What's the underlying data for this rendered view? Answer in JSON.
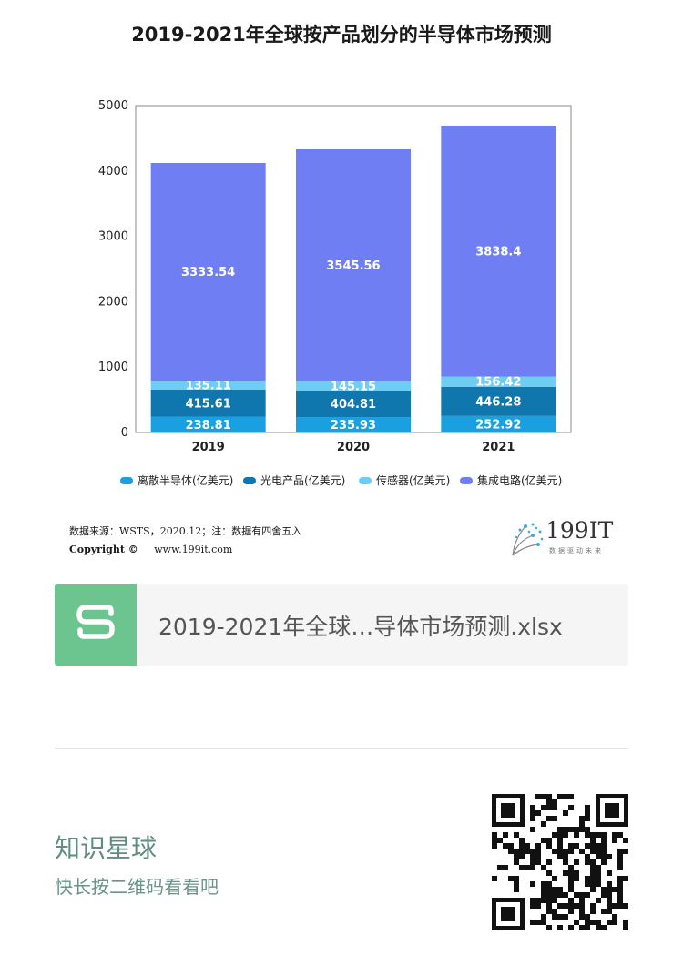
{
  "title": "2019-2021年全球按产品划分的半导体市场预测",
  "chart_data": {
    "type": "bar",
    "stacked": true,
    "title": "2019-2021年全球按产品划分的半导体市场预测",
    "categories": [
      "2019",
      "2020",
      "2021"
    ],
    "series": [
      {
        "name": "离散半导体(亿美元)",
        "values": [
          238.81,
          235.93,
          252.92
        ],
        "color": "#1a9fe0"
      },
      {
        "name": "光电产品(亿美元)",
        "values": [
          415.61,
          404.81,
          446.28
        ],
        "color": "#0f76ae"
      },
      {
        "name": "传感器(亿美元)",
        "values": [
          135.11,
          145.15,
          156.42
        ],
        "color": "#6ecdf2"
      },
      {
        "name": "集成电路(亿美元)",
        "values": [
          3333.54,
          3545.56,
          3838.4
        ],
        "color": "#6f7ef2"
      }
    ],
    "data_labels": [
      [
        "238.81",
        "235.93",
        "252.92"
      ],
      [
        "415.61",
        "404.81",
        "446.28"
      ],
      [
        "135.11",
        "145.15",
        "156.42"
      ],
      [
        "3333.54",
        "3545.56",
        "3838.4"
      ]
    ],
    "yticks": [
      "0",
      "1000",
      "2000",
      "3000",
      "4000",
      "5000"
    ],
    "ylim": [
      0,
      5000
    ],
    "legend_position": "bottom",
    "grid": false
  },
  "source": {
    "text": "数据来源：WSTS，2020.12；注：数据有四舍五入",
    "copyright_label": "Copyright ©",
    "website": "www.199it.com"
  },
  "logo": {
    "text": "199IT",
    "subtitle": "数据驱动未来"
  },
  "file": {
    "icon": "spreadsheet-s-icon",
    "name": "2019-2021年全球…导体市场预测.xlsx"
  },
  "planet": {
    "title": "知识星球",
    "subtitle": "快长按二维码看看吧",
    "qr_icon": "qr-code-icon"
  }
}
